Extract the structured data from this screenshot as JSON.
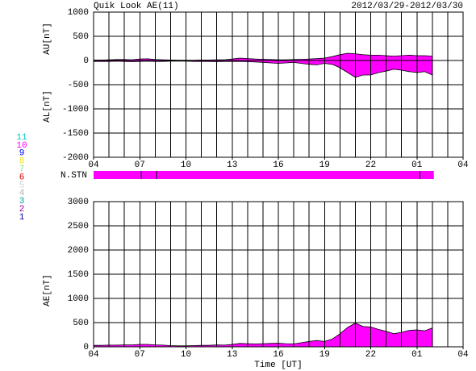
{
  "chart_data": [
    {
      "type": "area",
      "title": "Quik Look AE(11)",
      "subtitle": "2012/03/29-2012/03/30",
      "x": [
        0,
        0.5,
        1,
        1.5,
        2,
        2.5,
        3,
        3.5,
        4,
        4.5,
        5,
        5.5,
        6,
        6.5,
        7,
        7.5,
        8,
        8.5,
        9,
        9.5,
        10,
        10.5,
        11,
        11.5,
        12,
        12.5,
        13,
        13.5,
        14,
        14.5,
        15,
        15.5,
        16,
        16.5,
        17,
        17.5,
        18,
        18.5,
        19,
        19.5,
        20,
        20.5,
        21,
        21.5,
        22
      ],
      "series": [
        {
          "name": "AU[nT]",
          "color": "#ff00ff",
          "values": [
            10,
            10,
            15,
            20,
            20,
            15,
            30,
            35,
            20,
            15,
            10,
            5,
            5,
            5,
            10,
            10,
            15,
            15,
            30,
            50,
            40,
            30,
            25,
            20,
            15,
            15,
            20,
            25,
            30,
            40,
            50,
            80,
            120,
            150,
            140,
            120,
            110,
            110,
            100,
            90,
            100,
            110,
            100,
            100,
            90
          ]
        },
        {
          "name": "AL[nT]",
          "color": "#ff00ff",
          "values": [
            -20,
            -20,
            -20,
            -15,
            -20,
            -25,
            -20,
            -15,
            -20,
            -20,
            -15,
            -15,
            -15,
            -20,
            -20,
            -20,
            -25,
            -20,
            -20,
            -20,
            -25,
            -30,
            -40,
            -50,
            -60,
            -50,
            -40,
            -60,
            -80,
            -90,
            -60,
            -80,
            -150,
            -250,
            -350,
            -300,
            -300,
            -250,
            -220,
            -180,
            -200,
            -230,
            -250,
            -230,
            -300
          ]
        }
      ],
      "xlim": [
        0,
        24
      ],
      "xticks": [
        {
          "value": 0,
          "label": "04"
        },
        {
          "value": 3,
          "label": "07"
        },
        {
          "value": 6,
          "label": "10"
        },
        {
          "value": 9,
          "label": "13"
        },
        {
          "value": 12,
          "label": "16"
        },
        {
          "value": 15,
          "label": "19"
        },
        {
          "value": 18,
          "label": "22"
        },
        {
          "value": 21,
          "label": "01"
        },
        {
          "value": 24,
          "label": "04"
        }
      ],
      "ylim": [
        -2000,
        1000
      ],
      "yticks": [
        1000,
        500,
        0,
        -500,
        -1000,
        -1500,
        -2000
      ],
      "grid": true
    },
    {
      "type": "strip",
      "label": "N.STN",
      "color": "#ff00ff",
      "xlim": [
        0,
        24
      ],
      "bins": [
        0,
        3.1,
        4.1,
        21.2,
        22.1
      ],
      "values": [
        10,
        10,
        10,
        10
      ],
      "legend": [
        {
          "label": "11",
          "color": "#00c8c8"
        },
        {
          "label": "10",
          "color": "#ff00ff"
        },
        {
          "label": "9",
          "color": "#0000ff"
        },
        {
          "label": "8",
          "color": "#e8e800"
        },
        {
          "label": "7",
          "color": "#80e880"
        },
        {
          "label": "6",
          "color": "#e00000"
        },
        {
          "label": "5",
          "color": "#d0d0d0"
        },
        {
          "label": "4",
          "color": "#b0b0b0"
        },
        {
          "label": "3",
          "color": "#00a0a0"
        },
        {
          "label": "2",
          "color": "#a000a0"
        },
        {
          "label": "1",
          "color": "#0000a0"
        }
      ]
    },
    {
      "type": "area",
      "xlabel": "Time [UT]",
      "x": [
        0,
        0.5,
        1,
        1.5,
        2,
        2.5,
        3,
        3.5,
        4,
        4.5,
        5,
        5.5,
        6,
        6.5,
        7,
        7.5,
        8,
        8.5,
        9,
        9.5,
        10,
        10.5,
        11,
        11.5,
        12,
        12.5,
        13,
        13.5,
        14,
        14.5,
        15,
        15.5,
        16,
        16.5,
        17,
        17.5,
        18,
        18.5,
        19,
        19.5,
        20,
        20.5,
        21,
        21.5,
        22
      ],
      "series": [
        {
          "name": "AE[nT]",
          "color": "#ff00ff",
          "values": [
            30,
            30,
            35,
            35,
            40,
            40,
            50,
            50,
            40,
            35,
            25,
            20,
            20,
            25,
            30,
            30,
            40,
            35,
            50,
            70,
            65,
            60,
            65,
            70,
            75,
            65,
            60,
            85,
            110,
            130,
            110,
            160,
            270,
            400,
            490,
            420,
            410,
            360,
            320,
            270,
            300,
            340,
            350,
            330,
            390
          ]
        }
      ],
      "xlim": [
        0,
        24
      ],
      "xticks": [
        {
          "value": 0,
          "label": "04"
        },
        {
          "value": 3,
          "label": "07"
        },
        {
          "value": 6,
          "label": "10"
        },
        {
          "value": 9,
          "label": "13"
        },
        {
          "value": 12,
          "label": "16"
        },
        {
          "value": 15,
          "label": "19"
        },
        {
          "value": 18,
          "label": "22"
        },
        {
          "value": 21,
          "label": "01"
        },
        {
          "value": 24,
          "label": "04"
        }
      ],
      "ylim": [
        0,
        3000
      ],
      "yticks": [
        3000,
        2500,
        2000,
        1500,
        1000,
        500,
        0
      ],
      "grid": true
    }
  ]
}
